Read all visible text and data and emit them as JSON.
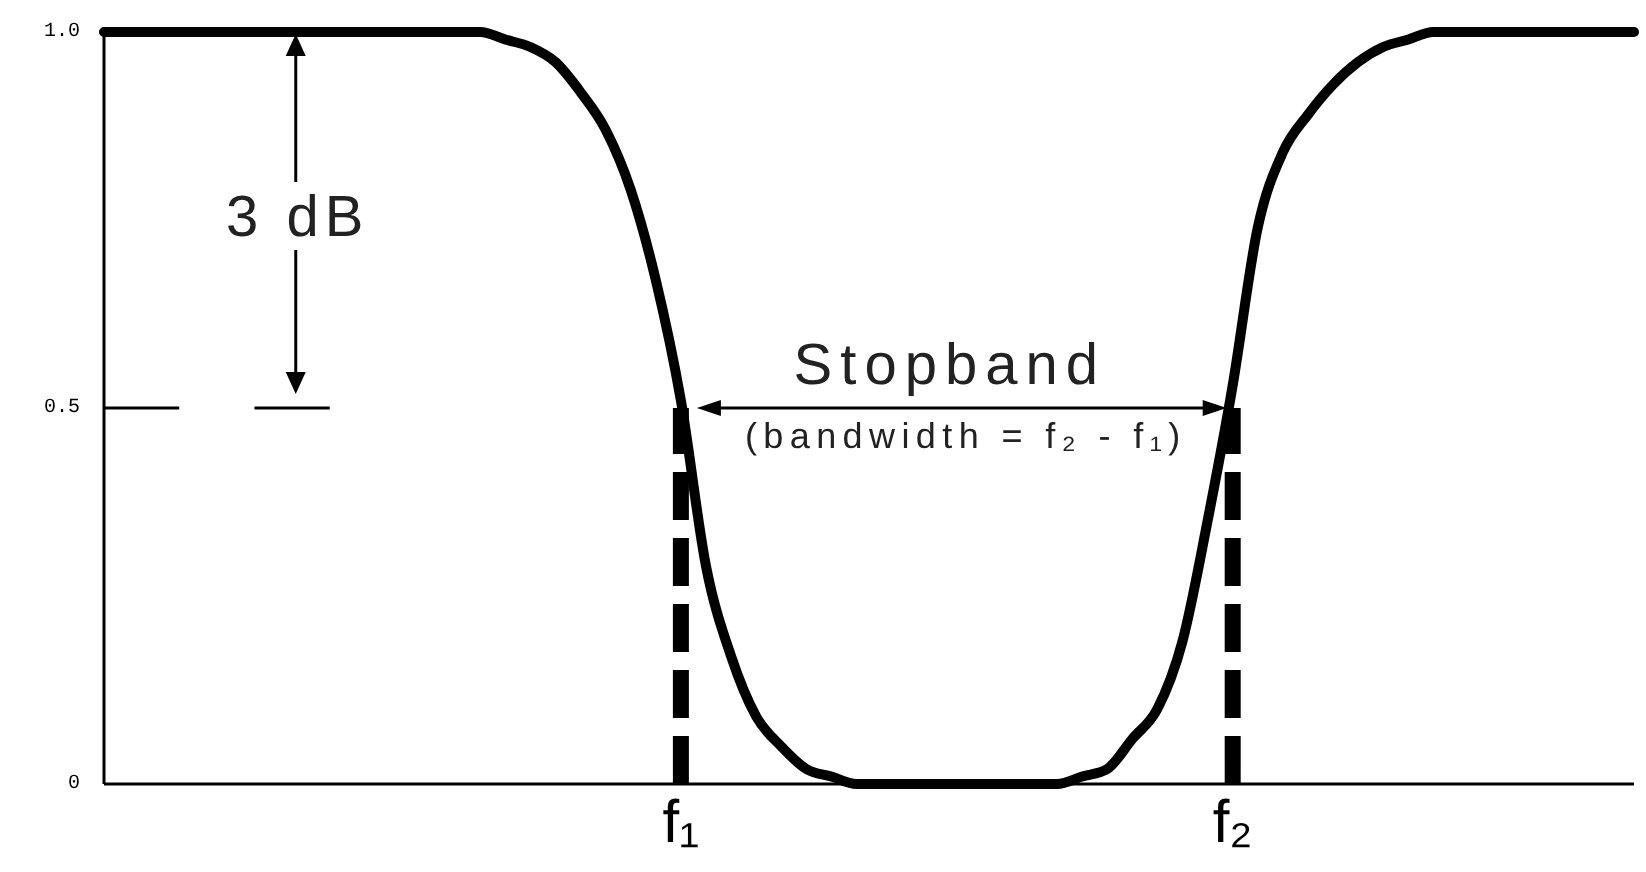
{
  "chart_data": {
    "type": "line",
    "categories": [
      null,
      null,
      null,
      null,
      null,
      null,
      null,
      null,
      null,
      null,
      null,
      null,
      null,
      null,
      null,
      null,
      null,
      null,
      null,
      null,
      null,
      null,
      null,
      "f₁",
      null,
      null,
      null,
      null,
      null,
      null,
      null,
      null,
      null,
      null,
      null,
      null,
      null,
      null,
      null,
      null,
      null,
      null,
      null,
      null,
      null,
      "f₂",
      null,
      null,
      null,
      null,
      null,
      null,
      null,
      null,
      null,
      null,
      null,
      null,
      null,
      null,
      null,
      null
    ],
    "series": [
      {
        "color": "#000000",
        "values": [
          1,
          1,
          1,
          1,
          1,
          1,
          1,
          1,
          1,
          1,
          1,
          1,
          1,
          1,
          1,
          1,
          0.99,
          0.98,
          0.96,
          0.92,
          0.87,
          0.79,
          0.67,
          0.51,
          0.29,
          0.17,
          0.09,
          0.05,
          0.02,
          0.01,
          0,
          0,
          0,
          0,
          0,
          0,
          0,
          0,
          0,
          0.01,
          0.02,
          0.06,
          0.1,
          0.19,
          0.35,
          0.53,
          0.74,
          0.84,
          0.89,
          0.93,
          0.96,
          0.98,
          0.99,
          1,
          1,
          1,
          1,
          1,
          1,
          1,
          1,
          1
        ]
      },
      {
        "color": "#000000",
        "values": [
          0.5,
          0.5,
          0.5,
          0.5,
          null,
          null,
          0.5,
          0.5,
          0.5,
          0.5,
          null,
          null,
          null,
          null,
          null,
          null,
          null,
          null,
          null,
          null,
          null,
          null,
          null,
          null,
          null,
          null,
          null,
          null,
          null,
          null,
          null,
          null,
          null,
          null,
          null,
          null,
          null,
          null,
          null,
          null,
          null,
          null,
          null,
          null,
          null,
          null,
          null,
          null,
          null,
          null,
          null,
          null,
          null,
          null,
          null,
          null,
          null,
          null,
          null,
          null,
          null,
          null
        ]
      },
      {
        "color": "#000000",
        "line_style": "dashed",
        "x": [
          "f₁",
          "f₁"
        ],
        "values": [
          0,
          0.5
        ]
      },
      {
        "color": "#000000",
        "line_style": "dashed",
        "x": [
          "f₂",
          "f₂"
        ],
        "values": [
          0,
          0.5
        ]
      }
    ],
    "ylim": [
      0,
      1
    ],
    "yticks": [
      0,
      0.5,
      {
        "value": 1,
        "label": "1.0"
      }
    ],
    "annotations": [
      "3 dB",
      "Stopband",
      "(bandwidth = f₂ - f₁)"
    ]
  }
}
